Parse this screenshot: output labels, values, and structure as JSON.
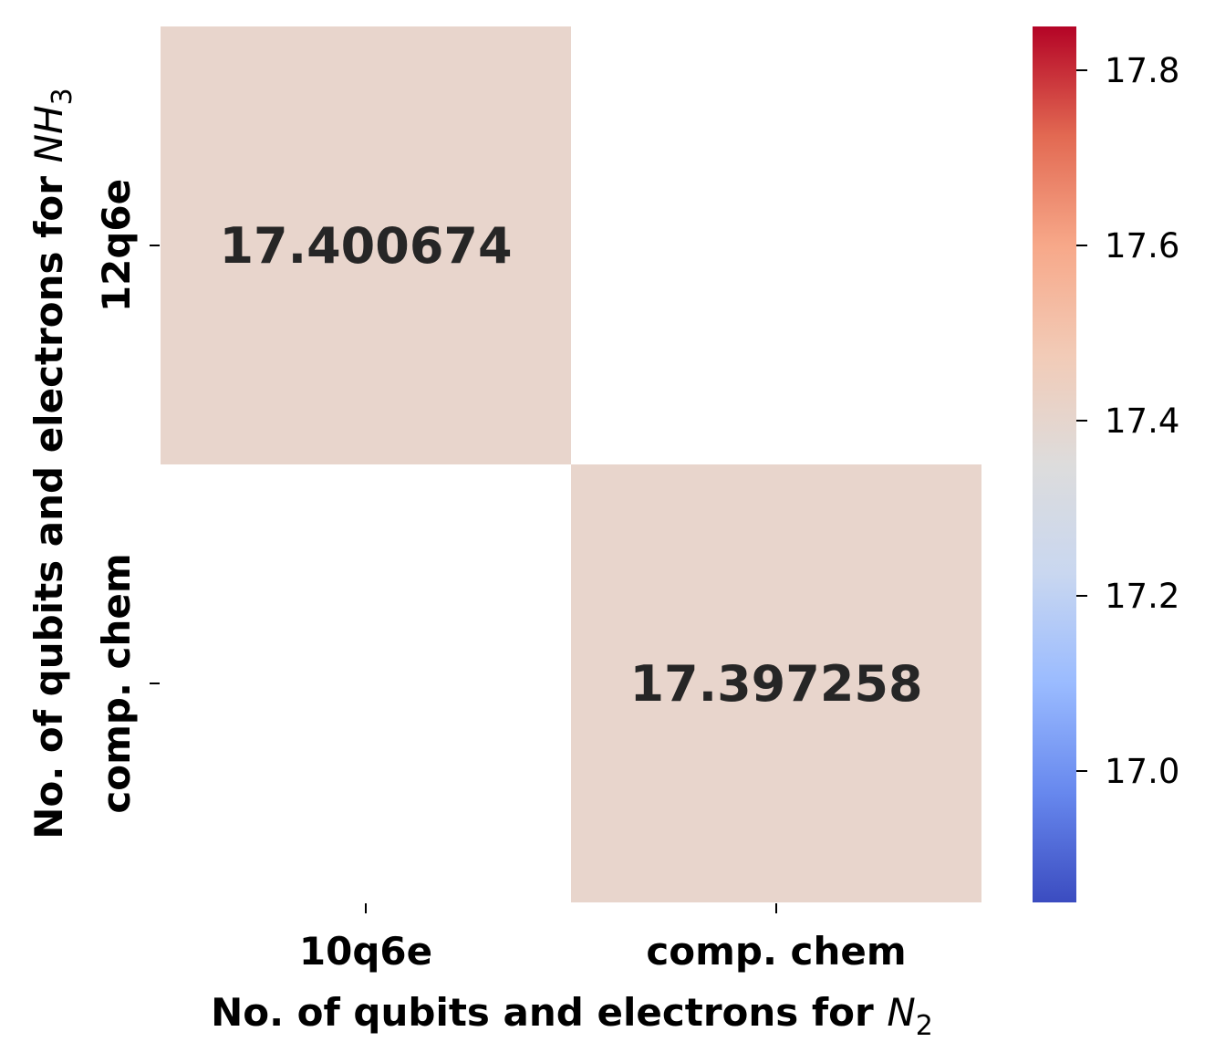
{
  "chart_data": {
    "type": "heatmap",
    "x_categories": [
      "10q6e",
      "comp. chem"
    ],
    "y_categories": [
      "12q6e",
      "comp. chem"
    ],
    "cells": [
      {
        "row": 0,
        "col": 0,
        "value": 17.400674,
        "label": "17.400674"
      },
      {
        "row": 1,
        "col": 1,
        "value": 17.397258,
        "label": "17.397258"
      }
    ],
    "missing_cells": [
      {
        "row": 0,
        "col": 1
      },
      {
        "row": 1,
        "col": 0
      }
    ],
    "xlabel": {
      "text": "No. of qubits and electrons for ",
      "math_base": "N",
      "math_sub": "2"
    },
    "ylabel": {
      "text": "No. of qubits and electrons for ",
      "math_base": "NH",
      "math_sub": "3"
    },
    "colorbar": {
      "colormap": "coolwarm",
      "vmin": 16.85,
      "vmax": 17.85,
      "ticks": [
        17.0,
        17.2,
        17.4,
        17.6,
        17.8
      ],
      "tick_labels": [
        "17.0",
        "17.2",
        "17.4",
        "17.6",
        "17.8"
      ],
      "colors": [
        "#3b4cc0",
        "#6788ee",
        "#9abbff",
        "#c9d7f0",
        "#dddcdc",
        "#f2cbb7",
        "#f7a889",
        "#e26952",
        "#b40426"
      ]
    },
    "cell_color": "#e8d5cc"
  }
}
